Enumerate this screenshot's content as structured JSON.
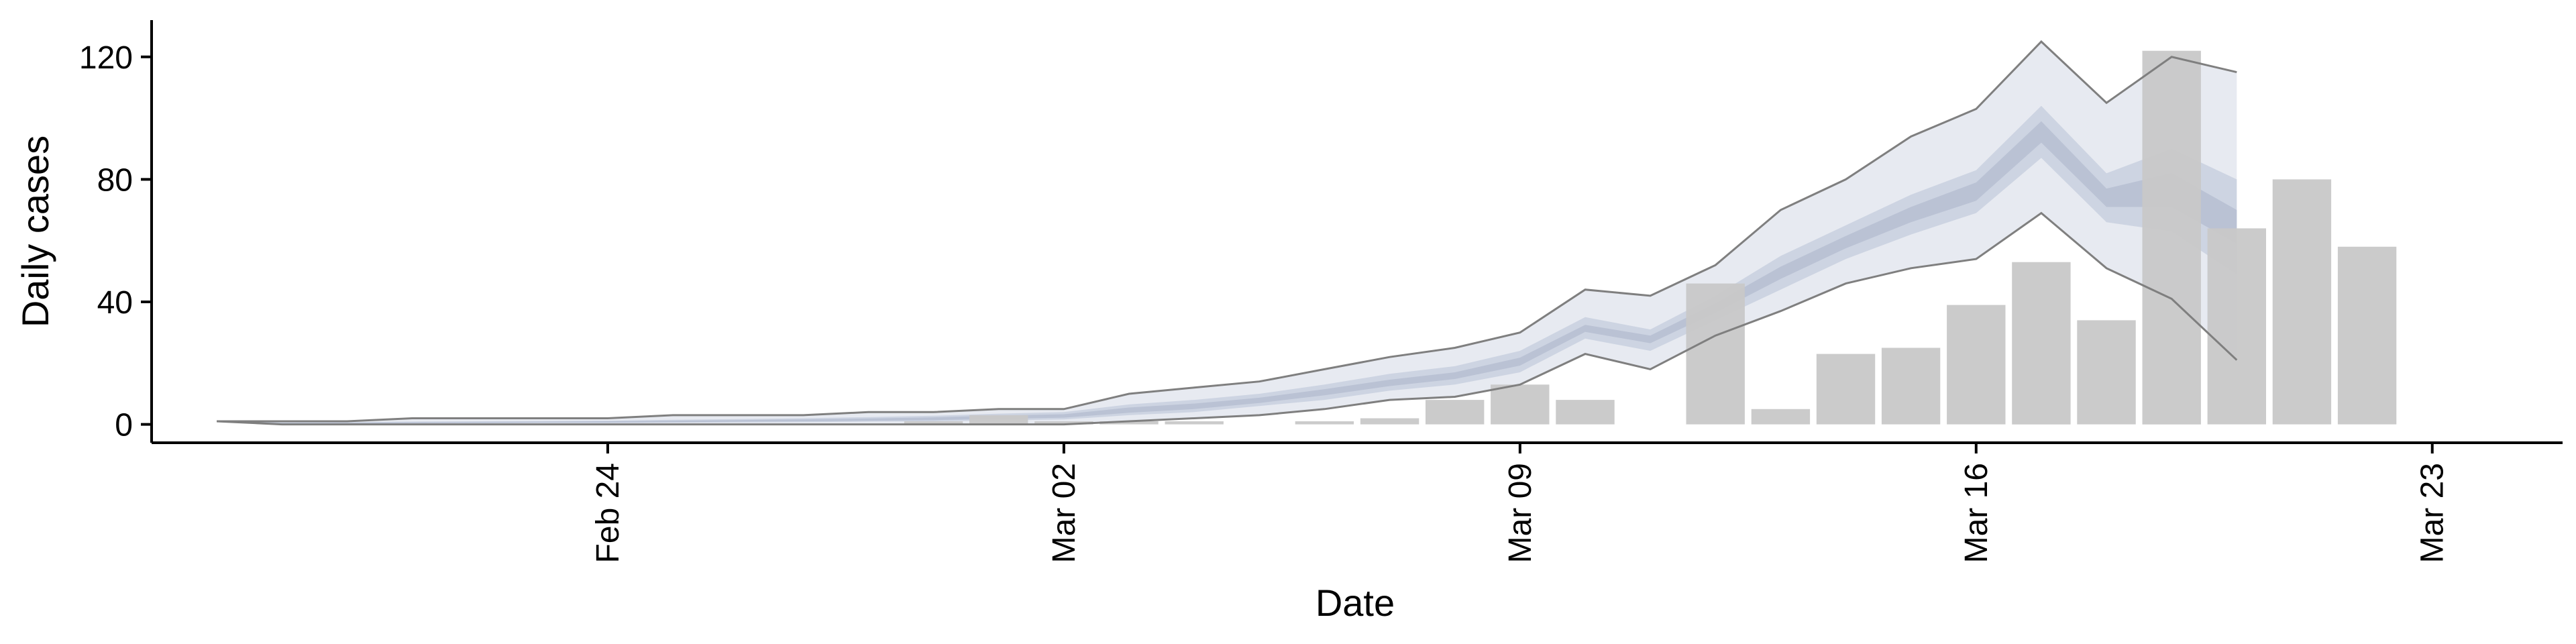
{
  "colors": {
    "bar": "#c8c8c8",
    "ribbon_outer": "#e3e6ee",
    "ribbon_inner": "#c7cede",
    "ribbon_core": "#aeb6cb",
    "line": "#7f7f7f",
    "axis": "#000000"
  },
  "chart_data": {
    "type": "bar",
    "xlabel": "Date",
    "ylabel": "Daily cases",
    "ylim": [
      -6,
      132
    ],
    "xlim": [
      "2020-02-16",
      "2020-03-24"
    ],
    "grid": false,
    "legend": "none",
    "x_ticks": [
      {
        "date": "2020-02-23",
        "label": "Feb 24"
      },
      {
        "date": "2020-03-01",
        "label": "Mar 02"
      },
      {
        "date": "2020-03-08",
        "label": "Mar 09"
      },
      {
        "date": "2020-03-15",
        "label": "Mar 16"
      },
      {
        "date": "2020-03-22",
        "label": "Mar 23"
      }
    ],
    "y_ticks": [
      0,
      40,
      80,
      120
    ],
    "bars": {
      "dates": [
        "2020-02-28",
        "2020-02-29",
        "2020-03-01",
        "2020-03-02",
        "2020-03-03",
        "2020-03-04",
        "2020-03-05",
        "2020-03-06",
        "2020-03-07",
        "2020-03-08",
        "2020-03-09",
        "2020-03-10",
        "2020-03-11",
        "2020-03-12",
        "2020-03-13",
        "2020-03-14",
        "2020-03-15",
        "2020-03-16",
        "2020-03-17",
        "2020-03-18",
        "2020-03-19",
        "2020-03-20",
        "2020-03-21",
        "2020-03-22"
      ],
      "values": [
        1,
        3,
        1,
        1,
        1,
        0,
        1,
        2,
        8,
        13,
        8,
        0,
        46,
        5,
        23,
        25,
        39,
        53,
        34,
        122,
        64,
        80,
        58,
        0
      ]
    },
    "band_dates": [
      "2020-02-17",
      "2020-02-18",
      "2020-02-19",
      "2020-02-20",
      "2020-02-21",
      "2020-02-22",
      "2020-02-23",
      "2020-02-24",
      "2020-02-25",
      "2020-02-26",
      "2020-02-27",
      "2020-02-28",
      "2020-02-29",
      "2020-03-01",
      "2020-03-02",
      "2020-03-03",
      "2020-03-04",
      "2020-03-05",
      "2020-03-06",
      "2020-03-07",
      "2020-03-08",
      "2020-03-09",
      "2020-03-10",
      "2020-03-11",
      "2020-03-12",
      "2020-03-13",
      "2020-03-14",
      "2020-03-15",
      "2020-03-16",
      "2020-03-17",
      "2020-03-18",
      "2020-03-19",
      "2020-03-20",
      "2020-03-21"
    ],
    "outer_upper": [
      1,
      1,
      1,
      2,
      2,
      2,
      2,
      3,
      3,
      3,
      4,
      4,
      5,
      5,
      10,
      12,
      14,
      18,
      22,
      25,
      30,
      44,
      42,
      52,
      70,
      80,
      94,
      103,
      125,
      105,
      120,
      115,
      0,
      0
    ],
    "outer_lower": [
      1,
      0,
      0,
      0,
      0,
      0,
      0,
      0,
      0,
      0,
      0,
      0,
      0,
      0,
      1,
      2,
      3,
      5,
      8,
      9,
      13,
      23,
      18,
      29,
      37,
      46,
      51,
      54,
      69,
      51,
      41,
      21,
      0,
      0
    ],
    "inner_upper": [
      1,
      0.6,
      0.7,
      0.9,
      1,
      1.1,
      1.2,
      1.5,
      1.7,
      2,
      2.4,
      2.8,
      3.5,
      4,
      6.5,
      8,
      10,
      13,
      16.5,
      19,
      24,
      35,
      31,
      42,
      55,
      65,
      75,
      83,
      104,
      82,
      90,
      80,
      0,
      0
    ],
    "inner_lower": [
      1,
      0.2,
      0.2,
      0.3,
      0.3,
      0.4,
      0.4,
      0.5,
      0.6,
      0.7,
      0.9,
      1,
      1.3,
      1.6,
      3,
      4,
      6,
      8,
      11,
      13,
      17,
      28,
      24,
      34,
      44,
      54,
      62,
      69,
      87,
      66,
      63,
      49,
      0,
      0
    ],
    "core_upper": [
      1,
      0.5,
      0.5,
      0.7,
      0.8,
      0.9,
      1,
      1.2,
      1.4,
      1.6,
      1.9,
      2.3,
      2.9,
      3.3,
      5.5,
      6.8,
      8.7,
      11.5,
      14.6,
      17,
      21.8,
      32.5,
      29,
      39.5,
      51.5,
      61.5,
      71,
      79,
      99,
      77,
      82,
      70,
      0,
      0
    ],
    "core_lower": [
      1,
      0.3,
      0.3,
      0.4,
      0.5,
      0.6,
      0.6,
      0.7,
      0.9,
      1,
      1.2,
      1.4,
      1.8,
      2.2,
      3.8,
      5,
      7,
      9.5,
      12.5,
      14.8,
      19.2,
      30.2,
      26.5,
      36.5,
      47.5,
      57.5,
      66,
      73,
      92,
      71,
      71,
      59,
      0,
      0
    ]
  }
}
